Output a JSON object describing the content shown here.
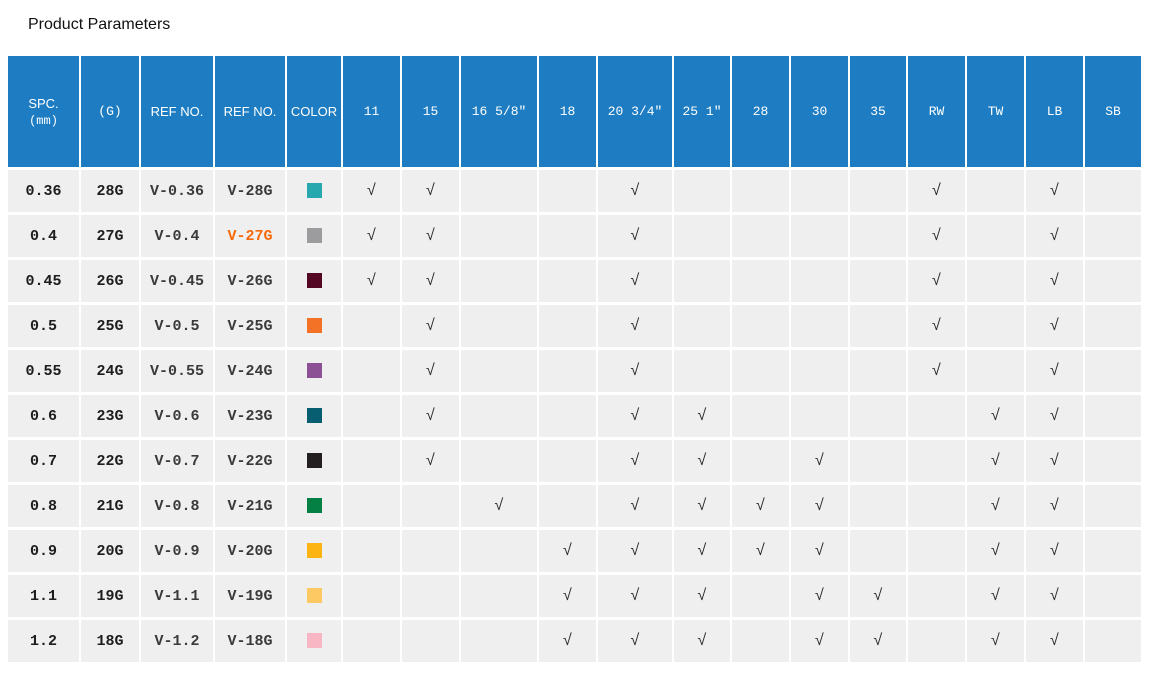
{
  "page": {
    "title": "Product Parameters"
  },
  "colors": {
    "header_bg": "#1E7DC2",
    "cell_bg": "#F0EFEF",
    "highlight_text": "#F5690A",
    "check_color": "#2B2B2B"
  },
  "table": {
    "check_glyph": "√",
    "headers": {
      "spc_line1": "SPC.",
      "spc_line2": "(mm)",
      "gauge": "(G)",
      "ref1": "REF NO.",
      "ref2": "REF NO.",
      "color": "COLOR",
      "sizes": [
        "11",
        "15",
        "16 5/8″",
        "18",
        "20 3/4″",
        "25 1″",
        "28",
        "30",
        "35",
        "RW",
        "TW",
        "LB",
        "SB"
      ]
    },
    "rows": [
      {
        "spc": "0.36",
        "gauge": "28G",
        "ref1": "V-0.36",
        "ref2": "V-28G",
        "highlight": false,
        "swatch": "#27A8AE",
        "checks": [
          1,
          1,
          0,
          0,
          1,
          0,
          0,
          0,
          0,
          1,
          0,
          1,
          0
        ]
      },
      {
        "spc": "0.4",
        "gauge": "27G",
        "ref1": "V-0.4",
        "ref2": "V-27G",
        "highlight": true,
        "swatch": "#9C9C9E",
        "checks": [
          1,
          1,
          0,
          0,
          1,
          0,
          0,
          0,
          0,
          1,
          0,
          1,
          0
        ]
      },
      {
        "spc": "0.45",
        "gauge": "26G",
        "ref1": "V-0.45",
        "ref2": "V-26G",
        "highlight": false,
        "swatch": "#530722",
        "checks": [
          1,
          1,
          0,
          0,
          1,
          0,
          0,
          0,
          0,
          1,
          0,
          1,
          0
        ]
      },
      {
        "spc": "0.5",
        "gauge": "25G",
        "ref1": "V-0.5",
        "ref2": "V-25G",
        "highlight": false,
        "swatch": "#F37226",
        "checks": [
          0,
          1,
          0,
          0,
          1,
          0,
          0,
          0,
          0,
          1,
          0,
          1,
          0
        ]
      },
      {
        "spc": "0.55",
        "gauge": "24G",
        "ref1": "V-0.55",
        "ref2": "V-24G",
        "highlight": false,
        "swatch": "#8C5194",
        "checks": [
          0,
          1,
          0,
          0,
          1,
          0,
          0,
          0,
          0,
          1,
          0,
          1,
          0
        ]
      },
      {
        "spc": "0.6",
        "gauge": "23G",
        "ref1": "V-0.6",
        "ref2": "V-23G",
        "highlight": false,
        "swatch": "#065E70",
        "checks": [
          0,
          1,
          0,
          0,
          1,
          1,
          0,
          0,
          0,
          0,
          1,
          1,
          0
        ]
      },
      {
        "spc": "0.7",
        "gauge": "22G",
        "ref1": "V-0.7",
        "ref2": "V-22G",
        "highlight": false,
        "swatch": "#231F20",
        "checks": [
          0,
          1,
          0,
          0,
          1,
          1,
          0,
          1,
          0,
          0,
          1,
          1,
          0
        ]
      },
      {
        "spc": "0.8",
        "gauge": "21G",
        "ref1": "V-0.8",
        "ref2": "V-21G",
        "highlight": false,
        "swatch": "#048044",
        "checks": [
          0,
          0,
          1,
          0,
          1,
          1,
          1,
          1,
          0,
          0,
          1,
          1,
          0
        ]
      },
      {
        "spc": "0.9",
        "gauge": "20G",
        "ref1": "V-0.9",
        "ref2": "V-20G",
        "highlight": false,
        "swatch": "#FBB411",
        "checks": [
          0,
          0,
          0,
          1,
          1,
          1,
          1,
          1,
          0,
          0,
          1,
          1,
          0
        ]
      },
      {
        "spc": "1.1",
        "gauge": "19G",
        "ref1": "V-1.1",
        "ref2": "V-19G",
        "highlight": false,
        "swatch": "#FDC963",
        "checks": [
          0,
          0,
          0,
          1,
          1,
          1,
          0,
          1,
          1,
          0,
          1,
          1,
          0
        ]
      },
      {
        "spc": "1.2",
        "gauge": "18G",
        "ref1": "V-1.2",
        "ref2": "V-18G",
        "highlight": false,
        "swatch": "#F8B6C5",
        "checks": [
          0,
          0,
          0,
          1,
          1,
          1,
          0,
          1,
          1,
          0,
          1,
          1,
          0
        ]
      }
    ]
  }
}
